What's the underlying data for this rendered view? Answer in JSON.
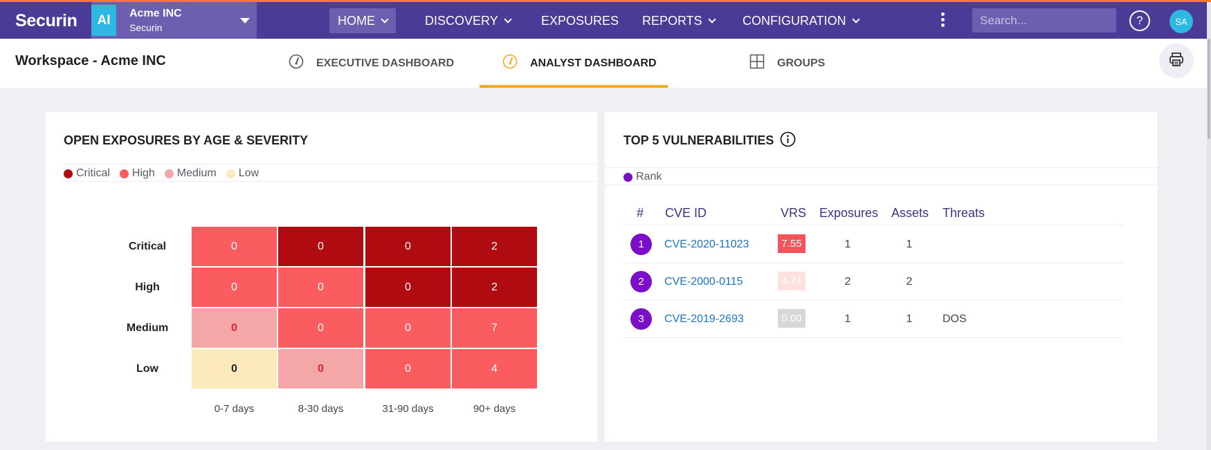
{
  "navbar": {
    "brand": "Securin",
    "org": {
      "avatar": "AI",
      "name": "Acme INC",
      "subtitle": "Securin"
    },
    "items": [
      {
        "label": "HOME",
        "dropdown": true,
        "active": true
      },
      {
        "label": "DISCOVERY",
        "dropdown": true
      },
      {
        "label": "EXPOSURES",
        "dropdown": false
      },
      {
        "label": "REPORTS",
        "dropdown": true
      },
      {
        "label": "CONFIGURATION",
        "dropdown": true
      }
    ],
    "search_placeholder": "Search...",
    "help": "?",
    "user_initials": "SA"
  },
  "subheader": {
    "workspace_title": "Workspace - Acme INC",
    "tabs": [
      {
        "label": "EXECUTIVE DASHBOARD",
        "icon": "gauge-icon"
      },
      {
        "label": "ANALYST DASHBOARD",
        "icon": "gauge-icon",
        "active": true
      },
      {
        "label": "GROUPS",
        "icon": "grid-icon"
      }
    ]
  },
  "heatmap_card": {
    "title": "OPEN EXPOSURES BY AGE & SEVERITY",
    "legend": [
      {
        "label": "Critical",
        "color": "#b00b11"
      },
      {
        "label": "High",
        "color": "#fb5c5f"
      },
      {
        "label": "Medium",
        "color": "#f5a7a7"
      },
      {
        "label": "Low",
        "color": "#fceabb"
      }
    ],
    "rows": [
      "Critical",
      "High",
      "Medium",
      "Low"
    ],
    "columns": [
      "0-7 days",
      "8-30 days",
      "31-90 days",
      "90+ days"
    ],
    "values": [
      [
        "0",
        "0",
        "0",
        "2"
      ],
      [
        "0",
        "0",
        "0",
        "2"
      ],
      [
        "0",
        "0",
        "0",
        "7"
      ],
      [
        "0",
        "0",
        "0",
        "4"
      ]
    ]
  },
  "vuln_card": {
    "title": "TOP 5 VULNERABILITIES",
    "legend_label": "Rank",
    "legend_color": "#7b0ec7",
    "headers": [
      "#",
      "CVE ID",
      "VRS",
      "Exposures",
      "Assets",
      "Threats"
    ],
    "rows": [
      {
        "rank": "1",
        "cve": "CVE-2020-11023",
        "vrs": "7.55",
        "vrs_color": "#f2545b",
        "exposures": "1",
        "assets": "1",
        "threats": ""
      },
      {
        "rank": "2",
        "cve": "CVE-2000-0115",
        "vrs": "4.74",
        "vrs_color": "#fde0e0",
        "exposures": "2",
        "assets": "2",
        "threats": ""
      },
      {
        "rank": "3",
        "cve": "CVE-2019-2693",
        "vrs": "0.00",
        "vrs_color": "#d7d7d7",
        "exposures": "1",
        "assets": "1",
        "threats": "DOS"
      }
    ]
  }
}
